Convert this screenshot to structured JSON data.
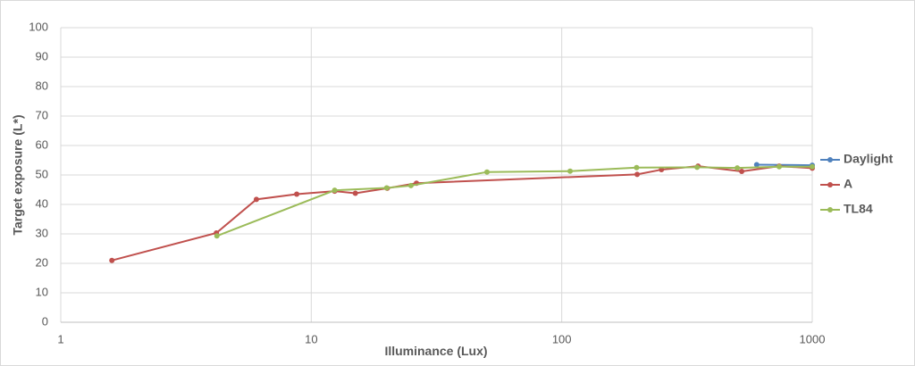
{
  "chart_data": {
    "type": "line",
    "x_label": "Illuminance (Lux)",
    "y_label": "Target exposure (L*)",
    "xscale": "log",
    "xlim": [
      1,
      1000
    ],
    "xticks": [
      1,
      10,
      100,
      1000
    ],
    "ylim": [
      0,
      100
    ],
    "yticks": [
      0,
      10,
      20,
      30,
      40,
      50,
      60,
      70,
      80,
      90,
      100
    ],
    "grid": true,
    "legend": "right",
    "series": [
      {
        "name": "Daylight",
        "color": "#4f81bd",
        "x": [
          600,
          1000
        ],
        "values": [
          53.5,
          53.3
        ]
      },
      {
        "name": "A",
        "color": "#c0504d",
        "x": [
          1.6,
          4.18,
          6.04,
          8.75,
          12.4,
          15,
          20.1,
          26.3,
          200,
          250,
          350,
          523,
          738,
          1000
        ],
        "values": [
          21,
          30.3,
          41.7,
          43.5,
          44.5,
          43.8,
          45.5,
          47.2,
          50.2,
          51.8,
          53,
          51.2,
          53,
          52.3
        ]
      },
      {
        "name": "TL84",
        "color": "#9bbb59",
        "x": [
          4.2,
          12.4,
          20,
          25,
          50.3,
          108,
          199,
          347,
          502,
          738,
          1000
        ],
        "values": [
          29.3,
          44.8,
          45.6,
          46.4,
          51,
          51.3,
          52.5,
          52.6,
          52.4,
          52.8,
          52.8
        ]
      }
    ]
  }
}
